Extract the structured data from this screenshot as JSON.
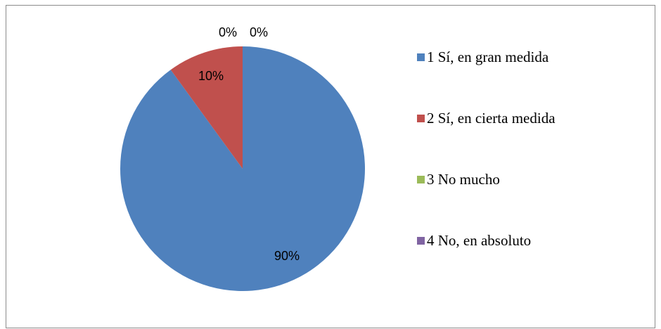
{
  "chart_data": {
    "type": "pie",
    "categories": [
      "1 Sí, en gran medida",
      "2 Sí, en cierta medida",
      "3 No mucho",
      "4 No, en absoluto"
    ],
    "values": [
      90,
      10,
      0,
      0
    ],
    "data_labels": [
      "90%",
      "10%",
      "0%",
      "0%"
    ],
    "colors": [
      "#4f81bd",
      "#c0504d",
      "#9bbb59",
      "#8064a2"
    ],
    "legend_position": "right"
  }
}
